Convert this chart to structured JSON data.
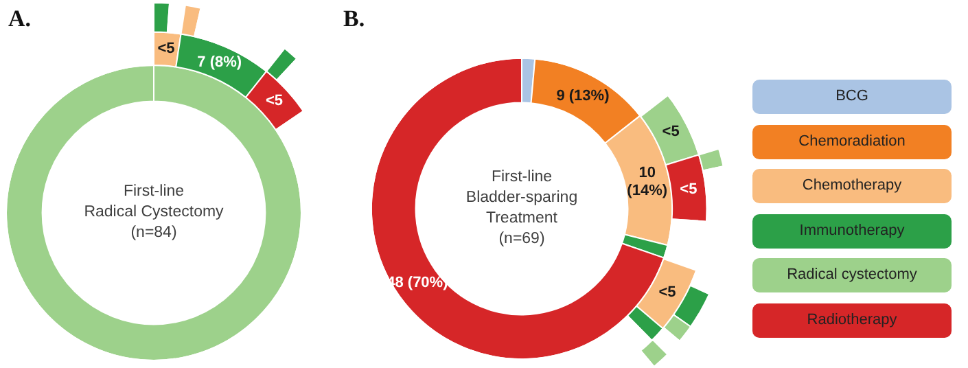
{
  "chart_data": [
    {
      "type": "donut",
      "title": "A.",
      "annotations": [
        "First-line\nRadical Cystectomy\n(n=84)"
      ],
      "series": [
        {
          "values": [
            100
          ],
          "colors": [
            "#9dd18b"
          ],
          "value_labels": [
            null
          ]
        },
        {
          "values": [
            2.4,
            8.3,
            4.8,
            84.5
          ],
          "colors": [
            "#f9bc7f",
            "#2ca048",
            "#d62628",
            "#ffffff"
          ],
          "value_labels": [
            "<5",
            "7 (8%)",
            "<5",
            null
          ]
        },
        {
          "values": [
            1.2,
            1.2,
            1.2,
            7.1,
            1.2,
            88.1
          ],
          "colors": [
            "#2ca048",
            "#ffffff",
            "#f9bc7f",
            "#ffffff",
            "#2ca048",
            "#ffffff"
          ],
          "value_labels": [
            null,
            null,
            null,
            null,
            null,
            null
          ]
        }
      ]
    },
    {
      "type": "donut",
      "title": "B.",
      "annotations": [
        "First-line\nBladder-sparing\nTreatment\n(n=69)"
      ],
      "series": [
        {
          "values": [
            1.4,
            13.0,
            14.5,
            1.4,
            69.7
          ],
          "colors": [
            "#aac4e4",
            "#f28023",
            "#f9bc7f",
            "#2ca048",
            "#d62628"
          ],
          "value_labels": [
            null,
            "9 (13%)",
            "10\n(14%)",
            null,
            "48 (70%)"
          ]
        },
        {
          "values": [
            14.5,
            5.8,
            5.8,
            4.3,
            5.8,
            1.4,
            62.4
          ],
          "colors": [
            "#ffffff",
            "#9dd18b",
            "#d62628",
            "#ffffff",
            "#f9bc7f",
            "#2ca048",
            "#ffffff"
          ],
          "value_labels": [
            null,
            "<5",
            "<5",
            null,
            "<5",
            null,
            null
          ]
        },
        {
          "values": [
            20.3,
            1.4,
            10.1,
            2.9,
            1.4,
            1.4,
            1.4,
            61.1
          ],
          "colors": [
            "#ffffff",
            "#9dd18b",
            "#ffffff",
            "#2ca048",
            "#9dd18b",
            "#ffffff",
            "#9dd18b",
            "#ffffff"
          ],
          "value_labels": [
            null,
            null,
            null,
            null,
            null,
            null,
            null,
            null
          ]
        }
      ]
    },
    {
      "type": "other",
      "categories": [
        "BCG",
        "Chemoradiation",
        "Chemotherapy",
        "Immunotherapy",
        "Radical cystectomy",
        "Radiotherapy"
      ],
      "colors": [
        "#aac4e4",
        "#f28023",
        "#f9bc7f",
        "#2ca048",
        "#9dd18b",
        "#d62628"
      ]
    }
  ]
}
